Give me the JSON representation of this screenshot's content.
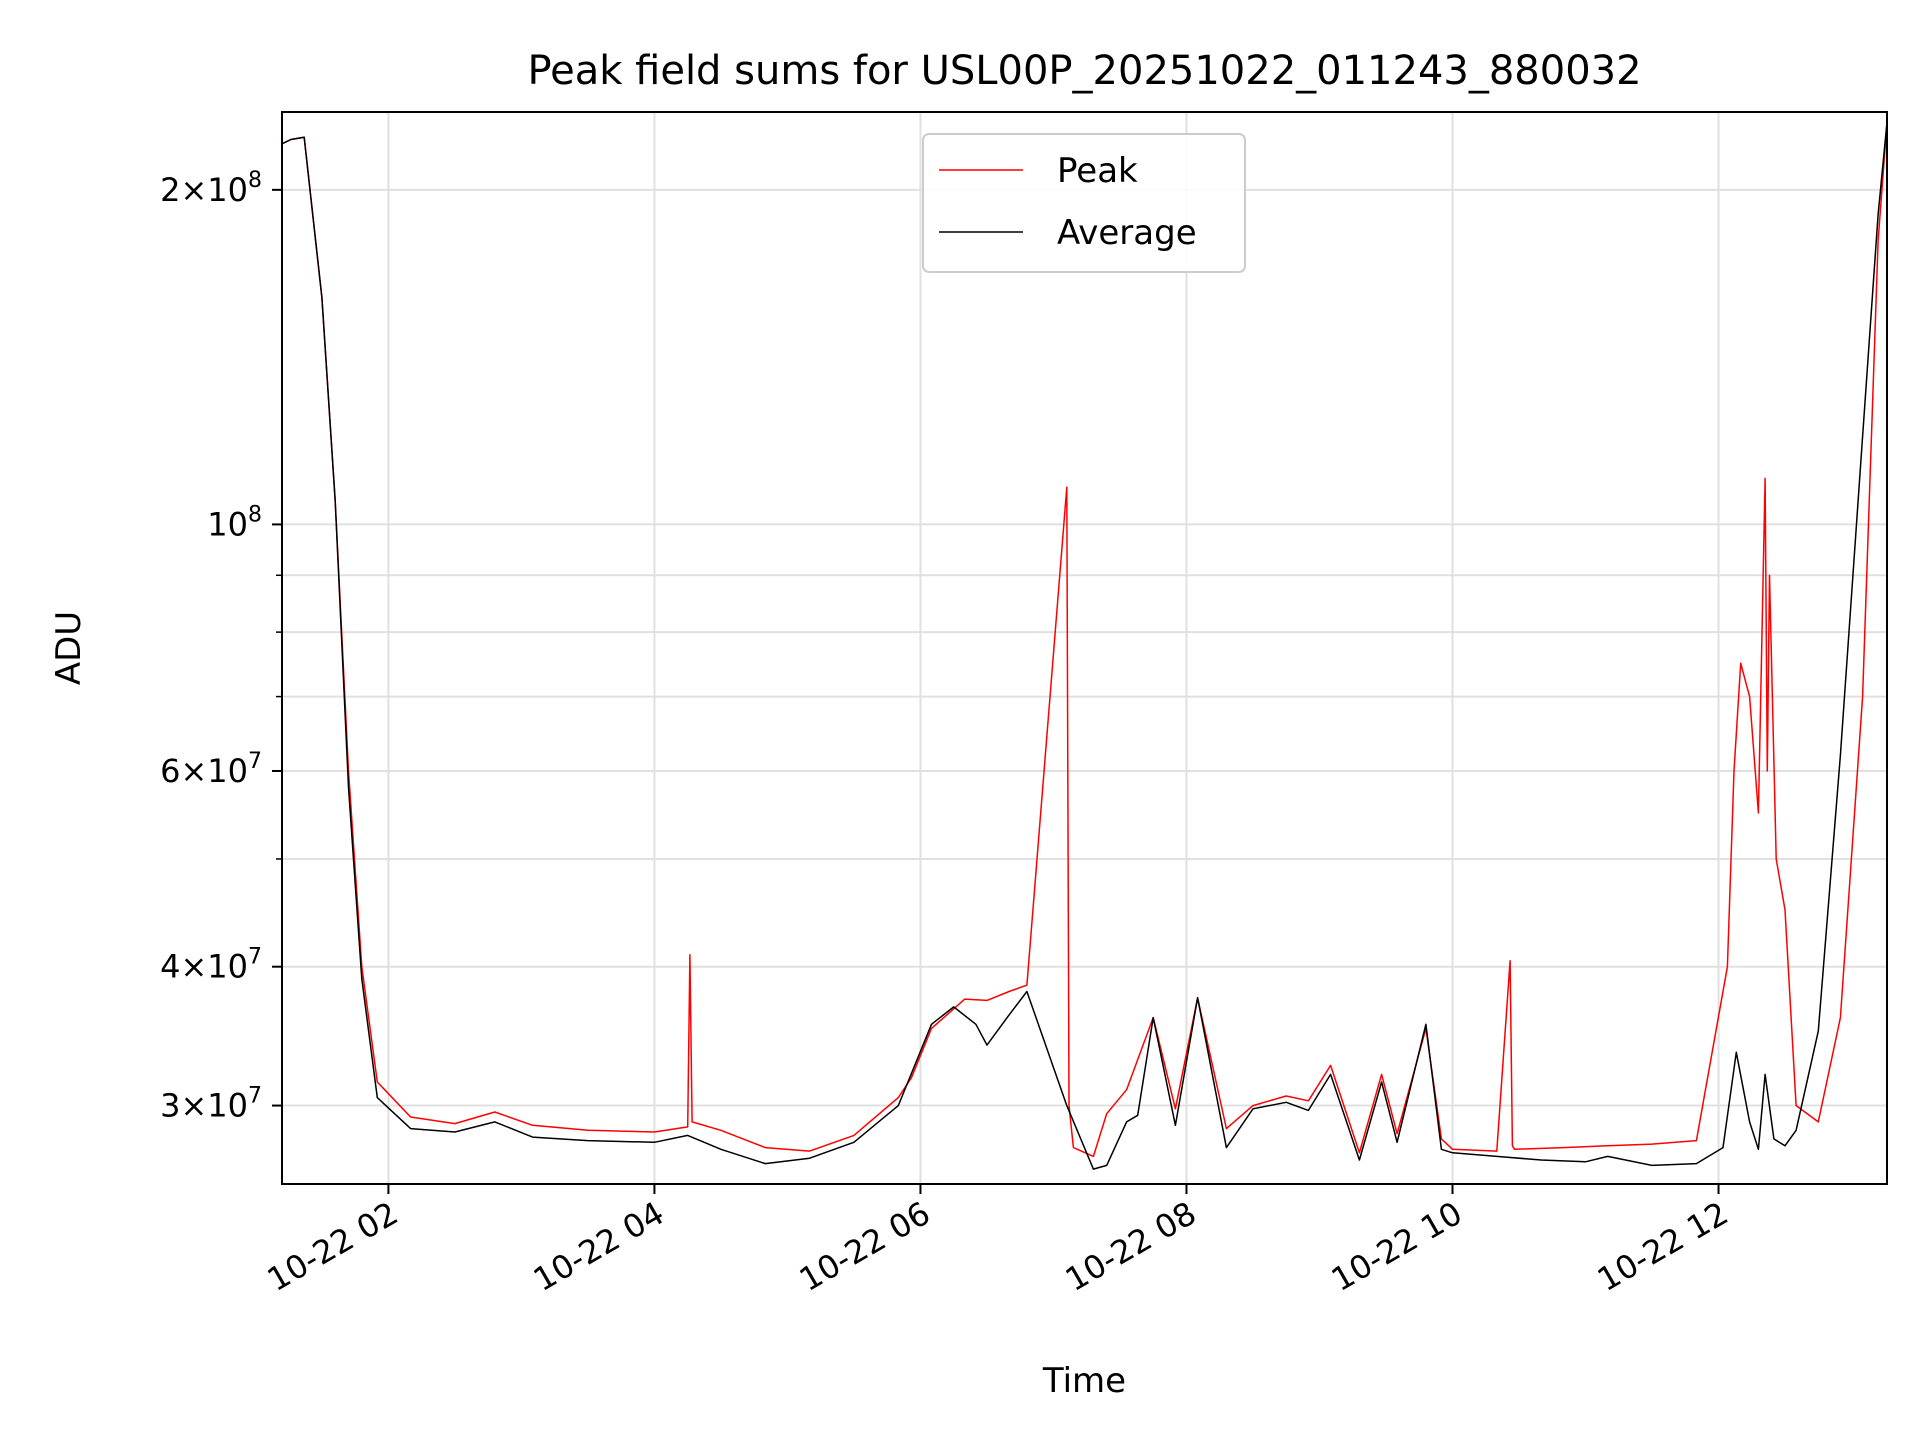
{
  "chart_data": {
    "type": "line",
    "title": "Peak field sums for USL00P_20251022_011243_880032",
    "xlabel": "Time",
    "ylabel": "ADU",
    "yscale": "log",
    "ylim": [
      25500000,
      235000000
    ],
    "xlim": [
      "2025-10-22 01:12",
      "2025-10-22 13:16"
    ],
    "grid": true,
    "legend_position": "upper center",
    "x_ticks": [
      {
        "label": "10-22 02",
        "value": "2025-10-22 02:00"
      },
      {
        "label": "10-22 04",
        "value": "2025-10-22 04:00"
      },
      {
        "label": "10-22 06",
        "value": "2025-10-22 06:00"
      },
      {
        "label": "10-22 08",
        "value": "2025-10-22 08:00"
      },
      {
        "label": "10-22 10",
        "value": "2025-10-22 10:00"
      },
      {
        "label": "10-22 12",
        "value": "2025-10-22 12:00"
      }
    ],
    "y_ticks_major": [
      {
        "value": 30000000,
        "mant": "3",
        "exp": "7"
      },
      {
        "value": 40000000,
        "mant": "4",
        "exp": "7"
      },
      {
        "value": 60000000,
        "mant": "6",
        "exp": "7"
      },
      {
        "value": 100000000,
        "mant": "",
        "exp": "8"
      },
      {
        "value": 200000000,
        "mant": "2",
        "exp": "8"
      }
    ],
    "y_ticks_minor": [
      50000000,
      70000000,
      80000000,
      90000000
    ],
    "series": [
      {
        "name": "Peak",
        "color": "#ff0000",
        "x": [
          "2025-10-22 01:12",
          "2025-10-22 01:16",
          "2025-10-22 01:22",
          "2025-10-22 01:30",
          "2025-10-22 01:36",
          "2025-10-22 01:42",
          "2025-10-22 01:48",
          "2025-10-22 01:55",
          "2025-10-22 02:10",
          "2025-10-22 02:30",
          "2025-10-22 02:48",
          "2025-10-22 03:05",
          "2025-10-22 03:30",
          "2025-10-22 04:00",
          "2025-10-22 04:15",
          "2025-10-22 04:16",
          "2025-10-22 04:17",
          "2025-10-22 04:30",
          "2025-10-22 04:50",
          "2025-10-22 05:10",
          "2025-10-22 05:30",
          "2025-10-22 05:50",
          "2025-10-22 05:56",
          "2025-10-22 06:05",
          "2025-10-22 06:20",
          "2025-10-22 06:30",
          "2025-10-22 06:40",
          "2025-10-22 06:48",
          "2025-10-22 07:06",
          "2025-10-22 07:07",
          "2025-10-22 07:09",
          "2025-10-22 07:18",
          "2025-10-22 07:24",
          "2025-10-22 07:33",
          "2025-10-22 07:45",
          "2025-10-22 07:55",
          "2025-10-22 08:05",
          "2025-10-22 08:18",
          "2025-10-22 08:30",
          "2025-10-22 08:45",
          "2025-10-22 08:55",
          "2025-10-22 09:05",
          "2025-10-22 09:18",
          "2025-10-22 09:28",
          "2025-10-22 09:35",
          "2025-10-22 09:48",
          "2025-10-22 09:55",
          "2025-10-22 10:00",
          "2025-10-22 10:20",
          "2025-10-22 10:26",
          "2025-10-22 10:27",
          "2025-10-22 10:28",
          "2025-10-22 10:50",
          "2025-10-22 11:10",
          "2025-10-22 11:30",
          "2025-10-22 11:50",
          "2025-10-22 12:04",
          "2025-10-22 12:07",
          "2025-10-22 12:10",
          "2025-10-22 12:14",
          "2025-10-22 12:18",
          "2025-10-22 12:21",
          "2025-10-22 12:22",
          "2025-10-22 12:23",
          "2025-10-22 12:26",
          "2025-10-22 12:30",
          "2025-10-22 12:35",
          "2025-10-22 12:45",
          "2025-10-22 12:55",
          "2025-10-22 13:05",
          "2025-10-22 13:12",
          "2025-10-22 13:16"
        ],
        "y": [
          220000000,
          222000000,
          223000000,
          160000000,
          105000000,
          60000000,
          40000000,
          31500000,
          29300000,
          28900000,
          29600000,
          28800000,
          28500000,
          28400000,
          28700000,
          41000000,
          29000000,
          28500000,
          27500000,
          27300000,
          28200000,
          30500000,
          31800000,
          35200000,
          37400000,
          37300000,
          38000000,
          38500000,
          108000000,
          30000000,
          27500000,
          27000000,
          29500000,
          31000000,
          36000000,
          29800000,
          37500000,
          28600000,
          30000000,
          30600000,
          30300000,
          32600000,
          27200000,
          32000000,
          28300000,
          35200000,
          28000000,
          27400000,
          27300000,
          40500000,
          27600000,
          27400000,
          27500000,
          27600000,
          27700000,
          27900000,
          40000000,
          60000000,
          75000000,
          70000000,
          55000000,
          110000000,
          60000000,
          90000000,
          50000000,
          45000000,
          30000000,
          29000000,
          36000000,
          70000000,
          180000000,
          230000000
        ]
      },
      {
        "name": "Average",
        "color": "#000000",
        "x": [
          "2025-10-22 01:12",
          "2025-10-22 01:16",
          "2025-10-22 01:22",
          "2025-10-22 01:30",
          "2025-10-22 01:36",
          "2025-10-22 01:42",
          "2025-10-22 01:48",
          "2025-10-22 01:55",
          "2025-10-22 02:10",
          "2025-10-22 02:30",
          "2025-10-22 02:48",
          "2025-10-22 03:05",
          "2025-10-22 03:30",
          "2025-10-22 04:00",
          "2025-10-22 04:15",
          "2025-10-22 04:30",
          "2025-10-22 04:50",
          "2025-10-22 05:10",
          "2025-10-22 05:30",
          "2025-10-22 05:50",
          "2025-10-22 06:05",
          "2025-10-22 06:15",
          "2025-10-22 06:25",
          "2025-10-22 06:30",
          "2025-10-22 06:40",
          "2025-10-22 06:48",
          "2025-10-22 07:06",
          "2025-10-22 07:18",
          "2025-10-22 07:24",
          "2025-10-22 07:33",
          "2025-10-22 07:38",
          "2025-10-22 07:45",
          "2025-10-22 07:55",
          "2025-10-22 08:05",
          "2025-10-22 08:18",
          "2025-10-22 08:30",
          "2025-10-22 08:45",
          "2025-10-22 08:55",
          "2025-10-22 09:05",
          "2025-10-22 09:18",
          "2025-10-22 09:28",
          "2025-10-22 09:35",
          "2025-10-22 09:48",
          "2025-10-22 09:55",
          "2025-10-22 10:00",
          "2025-10-22 10:20",
          "2025-10-22 10:40",
          "2025-10-22 11:00",
          "2025-10-22 11:10",
          "2025-10-22 11:30",
          "2025-10-22 11:50",
          "2025-10-22 12:02",
          "2025-10-22 12:08",
          "2025-10-22 12:14",
          "2025-10-22 12:18",
          "2025-10-22 12:21",
          "2025-10-22 12:25",
          "2025-10-22 12:30",
          "2025-10-22 12:35",
          "2025-10-22 12:45",
          "2025-10-22 12:55",
          "2025-10-22 13:05",
          "2025-10-22 13:12",
          "2025-10-22 13:16"
        ],
        "y": [
          220000000,
          222000000,
          223000000,
          160000000,
          105000000,
          58000000,
          39000000,
          30500000,
          28600000,
          28400000,
          29000000,
          28100000,
          27900000,
          27800000,
          28200000,
          27400000,
          26600000,
          26900000,
          27800000,
          30000000,
          35500000,
          36800000,
          35500000,
          34000000,
          36200000,
          38000000,
          30000000,
          26300000,
          26500000,
          29000000,
          29400000,
          36000000,
          28800000,
          37500000,
          27500000,
          29800000,
          30200000,
          29700000,
          32000000,
          26800000,
          31500000,
          27800000,
          35500000,
          27400000,
          27200000,
          27000000,
          26800000,
          26700000,
          27000000,
          26500000,
          26600000,
          27500000,
          33500000,
          29000000,
          27400000,
          32000000,
          28000000,
          27600000,
          28500000,
          35000000,
          62000000,
          120000000,
          190000000,
          230000000
        ]
      }
    ]
  }
}
